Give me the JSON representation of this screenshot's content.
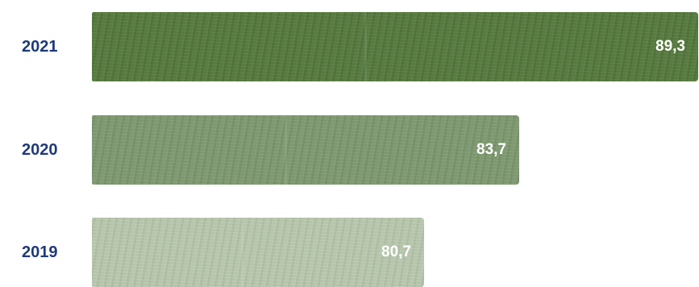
{
  "chart_data": {
    "type": "bar",
    "orientation": "horizontal",
    "categories": [
      "2021",
      "2020",
      "2019"
    ],
    "values": [
      89.3,
      83.7,
      80.7
    ],
    "value_labels": [
      "89,3",
      "83,7",
      "80,7"
    ],
    "colors": [
      "#557a3d",
      "#7e9a70",
      "#b9c9ae"
    ],
    "label_color": "#1f3a7a",
    "title": "",
    "xlabel": "",
    "ylabel": ""
  }
}
